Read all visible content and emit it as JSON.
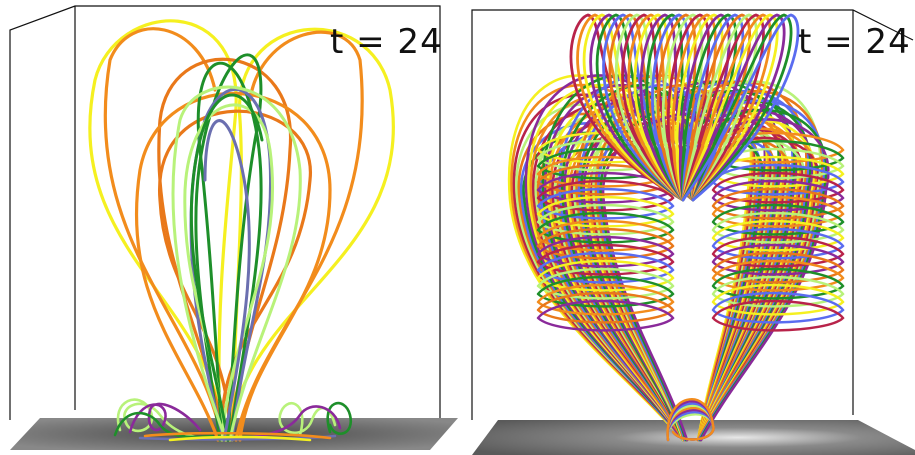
{
  "panels": [
    {
      "id": "left",
      "time_label": "t = 24",
      "view": "side"
    },
    {
      "id": "right",
      "time_label": "t = 24",
      "view": "oblique"
    }
  ],
  "colors": {
    "yellow": "#f5f020",
    "orange": "#f28c1c",
    "dark_orange": "#e9781a",
    "green": "#1e8f2a",
    "light_green": "#b8f27a",
    "slate_blue": "#6b6fb0",
    "blue": "#5a6cf0",
    "purple": "#8a2a9a",
    "crimson": "#b8234a",
    "floor": "#6a6a6a",
    "frame": "#111111"
  }
}
